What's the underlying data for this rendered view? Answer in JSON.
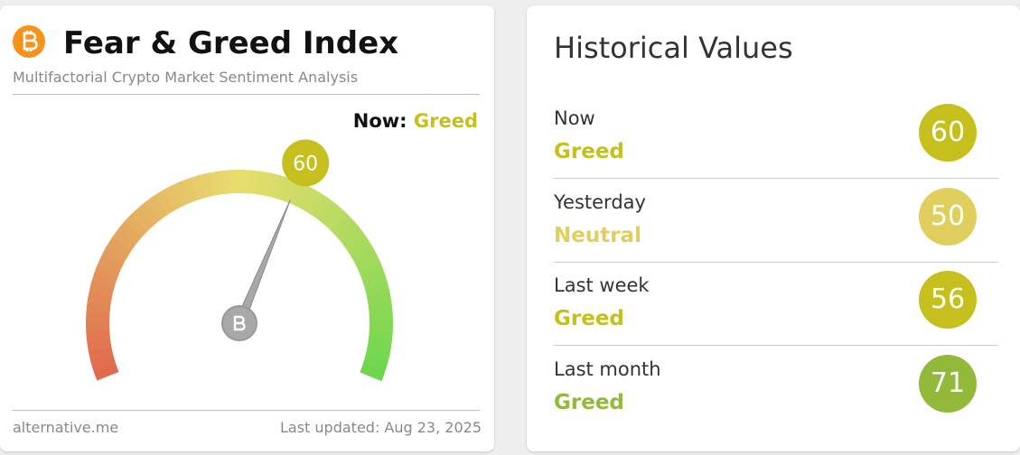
{
  "header": {
    "title": "Fear & Greed Index",
    "subtitle": "Multifactorial Crypto Market Sentiment Analysis"
  },
  "gauge": {
    "now_label": "Now:",
    "classification": "Greed",
    "value": 60,
    "lim": [
      0,
      100
    ],
    "color": "#c6c01e"
  },
  "footer": {
    "source": "alternative.me",
    "updated": "Last updated: Aug 23, 2025"
  },
  "history": {
    "title": "Historical Values",
    "rows": [
      {
        "label": "Now",
        "classification": "Greed",
        "value": 60,
        "color": "#c6c01e"
      },
      {
        "label": "Yesterday",
        "classification": "Neutral",
        "value": 50,
        "color": "#e0cf5e"
      },
      {
        "label": "Last week",
        "classification": "Greed",
        "value": 56,
        "color": "#c6c01e"
      },
      {
        "label": "Last month",
        "classification": "Greed",
        "value": 71,
        "color": "#93b93a"
      }
    ]
  }
}
